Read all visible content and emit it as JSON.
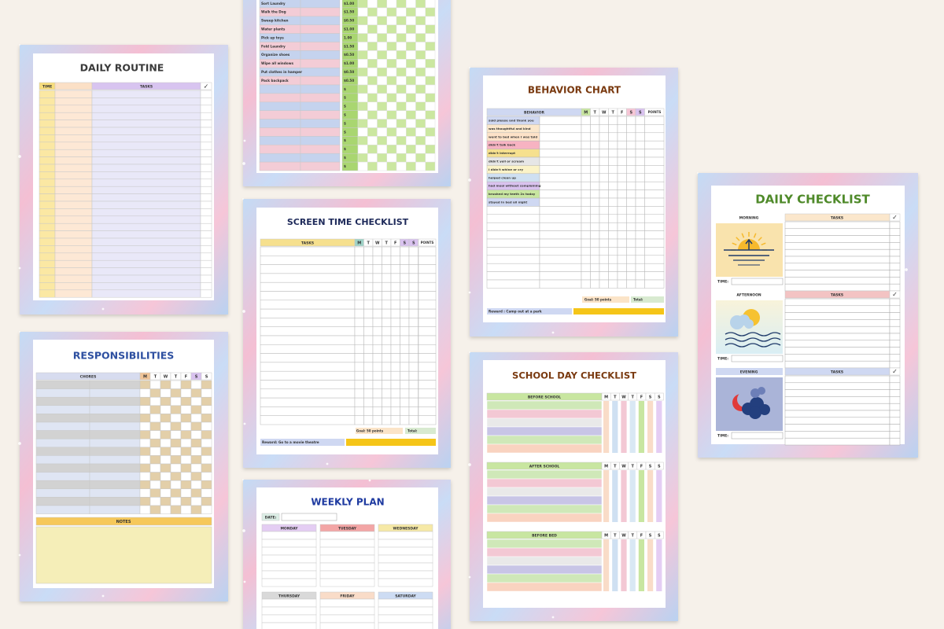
{
  "daily_routine": {
    "title": "DAILY ROUTINE",
    "time": "TIME",
    "tasks": "TASKS",
    "check": "✓"
  },
  "chore_chart": {
    "chores": [
      "Sort Laundry",
      "Walk the Dog",
      "Sweep kitchen",
      "Water plants",
      "Pick up toys",
      "Fold Laundry",
      "Organize shoes",
      "Wipe all windows",
      "Put clothes in hamper",
      "Pack backpack"
    ],
    "amounts": [
      "$1.00",
      "$1.50",
      "$0.50",
      "$1.00",
      "1.00",
      "$1.50",
      "$0.50",
      "$1.00",
      "$0.50",
      "$0.50"
    ],
    "blank_amount": "$"
  },
  "responsibilities": {
    "title": "RESPONSIBILITIES",
    "chores": "CHORES",
    "days": [
      "M",
      "T",
      "W",
      "T",
      "F",
      "S",
      "S"
    ],
    "notes": "NOTES"
  },
  "screen_time": {
    "title": "SCREEN TIME CHECKLIST",
    "tasks": "TASKS",
    "days": [
      "M",
      "T",
      "W",
      "T",
      "F",
      "S",
      "S"
    ],
    "points": "POINTS",
    "goal": "Goal: 50 points",
    "total": "Total:",
    "reward": "Reward: Go to a movie theatre"
  },
  "weekly_plan": {
    "title": "WEEKLY PLAN",
    "date": "DATE:",
    "days": [
      "MONDAY",
      "TUESDAY",
      "WEDNESDAY",
      "THURSDAY",
      "FRIDAY",
      "SATURDAY"
    ]
  },
  "behavior_chart": {
    "title": "BEHAVIOR CHART",
    "behavior": "BEHAVIOR",
    "days": [
      "M",
      "T",
      "W",
      "T",
      "F",
      "S",
      "S"
    ],
    "points": "POINTS",
    "behaviors": [
      "said please and thank you",
      "was thoughtful and kind",
      "went to bed when I was told",
      "didn't talk back",
      "didn't interrupt",
      "didn't yell or scream",
      "I didn't whine or cry",
      "helped clean up",
      "had meal without complaining",
      "brushed my teeth 2x today",
      "stayed in bed all night"
    ],
    "goal": "Goal: 50 points",
    "total": "Total:",
    "reward": "Reward : Camp out at a park"
  },
  "school_day": {
    "title": "SCHOOL DAY CHECKLIST",
    "days": [
      "M",
      "T",
      "W",
      "T",
      "F",
      "S",
      "S"
    ],
    "sections": [
      "BEFORE SCHOOL",
      "AFTER SCHOOL",
      "BEFORE BED"
    ]
  },
  "daily_checklist": {
    "title": "DAILY CHECKLIST",
    "sections": [
      "MORNING",
      "AFTERNOON",
      "EVENING"
    ],
    "tasks": "TASKS",
    "time": "TIME:",
    "check": "✓"
  }
}
